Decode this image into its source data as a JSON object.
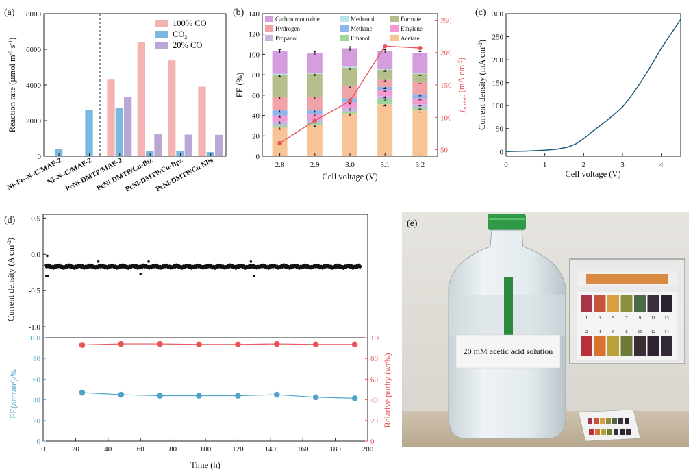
{
  "panel_labels": {
    "a": "(a)",
    "b": "(b)",
    "c": "(c)",
    "d": "(d)",
    "e": "(e)"
  },
  "colors": {
    "pink": "#f4b3b0",
    "blue": "#7ab8e0",
    "purple": "#b9a8d6",
    "red": "#e8545a",
    "teal": "#4fa3c7",
    "line_c": "#1f5a7a"
  },
  "chart_data": [
    {
      "id": "a",
      "type": "bar",
      "ylabel_main": "Reaction rate (µmol m",
      "ylabel_exp1": "-2",
      "ylabel_mid": " s",
      "ylabel_exp2": "-1",
      "ylabel_end": ")",
      "ylim": [
        0,
        8000
      ],
      "yticks": [
        "0",
        "2000",
        "4000",
        "6000",
        "8000"
      ],
      "categories": [
        "Ni–Fe–N–C/MAF-2",
        "Ni–N–C/MAF-2",
        "PcNi-DMTP/MAF-2",
        "PcNi-DMTP/Cu-Biz",
        "PcNi-DMTP/Cu-Bpz",
        "PcNi-DMTP/Cu NPs"
      ],
      "series": [
        {
          "name": "100% CO",
          "color": "#f4b3b0",
          "values": [
            null,
            null,
            4300,
            6400,
            5380,
            3900
          ]
        },
        {
          "name": "CO2",
          "color": "#7ab8e0",
          "values": [
            420,
            2580,
            2730,
            280,
            270,
            230
          ]
        },
        {
          "name": "20% CO",
          "color": "#b9a8d6",
          "values": [
            null,
            null,
            3330,
            1230,
            1210,
            1200
          ]
        }
      ],
      "legend": [
        {
          "name": "100% CO",
          "sub": ""
        },
        {
          "name": "CO",
          "sub": "2"
        },
        {
          "name": "20% CO",
          "sub": ""
        }
      ]
    },
    {
      "id": "b",
      "type": "bar",
      "xlabel": "Cell voltage (V)",
      "ylabel": "FE (%)",
      "ylabel_right_main": "j",
      "ylabel_right_sub": "acetate",
      "ylabel_right_unit": " (mA cm",
      "ylabel_right_exp": "-2",
      "ylabel_right_end": ")",
      "ylim": [
        0,
        140
      ],
      "y2lim": [
        40,
        260
      ],
      "yticks": [
        "0",
        "20",
        "40",
        "60",
        "80",
        "100",
        "120",
        "140"
      ],
      "y2ticks": [
        "50",
        "100",
        "150",
        "200",
        "250"
      ],
      "categories": [
        "2.8",
        "2.9",
        "3.0",
        "3.1",
        "3.2"
      ],
      "stack_series": [
        {
          "name": "Acetate",
          "color": "#f8c496",
          "values": [
            28,
            31,
            42,
            51,
            45
          ]
        },
        {
          "name": "Ethanol",
          "color": "#9fd49b",
          "values": [
            2,
            2,
            2,
            5,
            3
          ]
        },
        {
          "name": "Propanol",
          "color": "#c9b6e0",
          "values": [
            4,
            3,
            3,
            3,
            3
          ]
        },
        {
          "name": "Ethylene",
          "color": "#f49ad2",
          "values": [
            6,
            5,
            6,
            6,
            6
          ]
        },
        {
          "name": "Methane",
          "color": "#8fb5ec",
          "values": [
            5,
            4,
            4,
            3,
            4
          ]
        },
        {
          "name": "Hydrogen",
          "color": "#f0a3a8",
          "values": [
            13,
            13,
            12,
            7,
            12
          ]
        },
        {
          "name": "Formate",
          "color": "#b5bf8c",
          "values": [
            22,
            23,
            18,
            10,
            8
          ]
        },
        {
          "name": "Methanol",
          "color": "#b7e3ee",
          "values": [
            1,
            1,
            1,
            1,
            1
          ]
        },
        {
          "name": "Carbon monoxide",
          "color": "#d49ede",
          "values": [
            22,
            19,
            18,
            17,
            19
          ]
        }
      ],
      "legend_order": [
        "Carbon monoxide",
        "Methanol",
        "Formate",
        "Hydrogen",
        "Methane",
        "Ethylene",
        "Propanol",
        "Ethanol",
        "Acetate"
      ],
      "line_series": {
        "name": "j_acetate",
        "color": "#e8545a",
        "values": [
          60,
          95,
          125,
          210,
          207
        ]
      }
    },
    {
      "id": "c",
      "type": "line",
      "xlabel": "Cell voltage (V)",
      "ylabel_main": "Current density (mA cm",
      "ylabel_exp": "-2",
      "ylabel_end": ")",
      "xlim": [
        0,
        4.5
      ],
      "ylim": [
        -10,
        300
      ],
      "xticks": [
        "0",
        "1",
        "2",
        "3",
        "4"
      ],
      "yticks": [
        "0",
        "50",
        "100",
        "150",
        "200",
        "250",
        "300"
      ],
      "x": [
        0,
        0.5,
        1.0,
        1.3,
        1.6,
        1.8,
        2.0,
        2.2,
        2.4,
        2.6,
        2.8,
        3.0,
        3.2,
        3.4,
        3.6,
        3.8,
        4.0,
        4.2,
        4.4,
        4.5
      ],
      "y": [
        0,
        1,
        3,
        5,
        10,
        17,
        28,
        42,
        55,
        68,
        82,
        97,
        118,
        142,
        168,
        196,
        225,
        250,
        275,
        288
      ]
    },
    {
      "id": "d_top",
      "type": "scatter",
      "ylabel_main": "Current density (A cm",
      "ylabel_exp": "-2",
      "ylabel_end": ")",
      "xlim": [
        0,
        200
      ],
      "ylim": [
        -1.15,
        0.55
      ],
      "yticks": [
        "0.5",
        "0.0",
        "-0.5",
        "-1.0"
      ],
      "baseline": -0.17
    },
    {
      "id": "d_bottom",
      "type": "scatter",
      "xlabel": "Time (h)",
      "ylabel_left": "FE(acetate)/%",
      "ylabel_right": "Relative purity (wt%)",
      "xlim": [
        0,
        200
      ],
      "ylim": [
        0,
        100
      ],
      "xticks": [
        "0",
        "20",
        "40",
        "60",
        "80",
        "100",
        "120",
        "140",
        "160",
        "180",
        "200"
      ],
      "yticks": [
        "0",
        "20",
        "40",
        "60",
        "80",
        "100"
      ],
      "x": [
        24,
        48,
        72,
        96,
        120,
        144,
        168,
        192
      ],
      "series": [
        {
          "name": "FE(acetate)",
          "color": "#4fa3c7",
          "values": [
            47,
            45,
            44,
            44,
            44,
            45,
            42.5,
            41.5
          ]
        },
        {
          "name": "Relative purity",
          "color": "#e8545a",
          "values": [
            93,
            94,
            94,
            93.5,
            93.5,
            94,
            93.5,
            93.5
          ]
        }
      ]
    }
  ],
  "photo": {
    "bottle_label": "20 mM acetic acid solution",
    "ph_numbers_top": [
      "1",
      "3",
      "5",
      "7",
      "9",
      "11",
      "13"
    ],
    "ph_numbers_bottom": [
      "2",
      "4",
      "6",
      "8",
      "10",
      "12",
      "14"
    ],
    "ph_colors_top": [
      "#a8344a",
      "#c9523e",
      "#d9a043",
      "#8e8f3c",
      "#4b6a45",
      "#3a2f3c",
      "#2a2430"
    ],
    "ph_colors_bottom": [
      "#b8303a",
      "#d8722e",
      "#b9a23a",
      "#6d7a3a",
      "#3a2d33",
      "#2c2531",
      "#332936"
    ]
  }
}
